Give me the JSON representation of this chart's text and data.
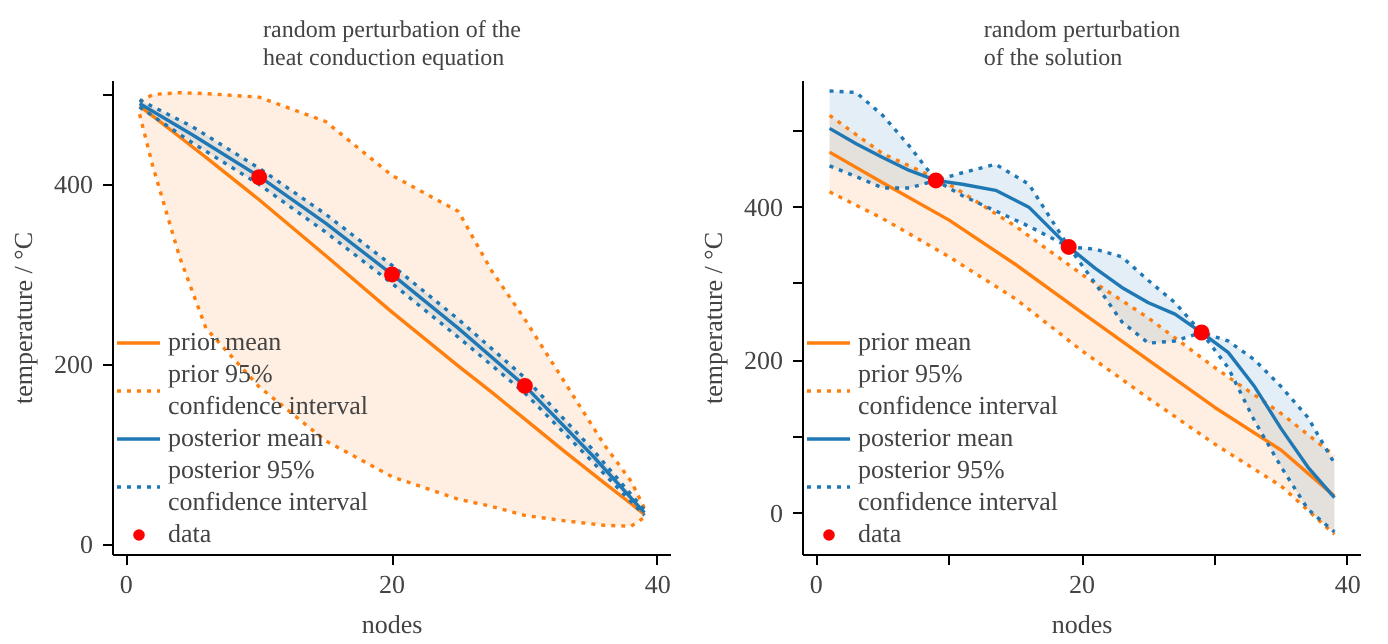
{
  "chart_data": [
    {
      "type": "line",
      "title": "random perturbation of the\nheat conduction equation",
      "xlabel": "nodes",
      "ylabel": "temperature / °C",
      "xlim": [
        -1,
        41
      ],
      "ylim": [
        -12,
        515
      ],
      "xticks": [
        0,
        20,
        40
      ],
      "yticks": [
        0,
        200,
        400,
        {
          "value": 500,
          "label": null
        }
      ],
      "grid": false,
      "legend": "bottom left",
      "series": [
        {
          "name": "prior mean",
          "type": "line",
          "color": "#ff7f0e",
          "line_style": "solid",
          "x": [
            1,
            2,
            4,
            6,
            10,
            15,
            20,
            25,
            27.5,
            30,
            33,
            36,
            38,
            39
          ],
          "values": [
            487,
            476,
            453,
            430,
            383,
            321,
            258,
            198,
            169,
            139,
            103,
            68,
            45,
            33
          ],
          "lower": [
            478,
            420,
            320,
            240,
            175,
            115,
            75,
            50,
            42,
            32,
            26,
            21,
            20,
            30
          ],
          "upper": [
            492,
            500,
            502,
            501,
            497,
            470,
            410,
            370,
            304,
            250,
            180,
            110,
            70,
            40
          ]
        },
        {
          "name": "prior 95% confidence interval",
          "type": "line",
          "color": "#ff7f0e",
          "line_style": "dotted",
          "x": [
            1,
            2,
            4,
            6,
            10,
            15,
            20,
            25,
            27.5,
            30,
            33,
            36,
            38,
            39
          ],
          "values": [
            492,
            500,
            502,
            501,
            497,
            470,
            410,
            370,
            304,
            250,
            180,
            110,
            70,
            40
          ]
        },
        {
          "type": "line",
          "color": "#ff7f0e",
          "line_style": "dotted",
          "x": [
            1,
            2,
            4,
            6,
            10,
            15,
            20,
            25,
            27.5,
            30,
            33,
            36,
            38,
            39
          ],
          "values": [
            478,
            420,
            320,
            240,
            175,
            115,
            75,
            50,
            42,
            32,
            26,
            21,
            20,
            30
          ]
        },
        {
          "name": "posterior mean",
          "type": "line",
          "color": "#1f77b4",
          "line_style": "solid",
          "x": [
            1,
            5,
            10,
            15,
            20,
            25,
            30,
            35,
            39
          ],
          "values": [
            490,
            455,
            409,
            357,
            300,
            240,
            176,
            100,
            35
          ],
          "lower": [
            486,
            446,
            400,
            347,
            290,
            230,
            168,
            93,
            32
          ],
          "upper": [
            494,
            464,
            418,
            367,
            310,
            250,
            185,
            107,
            38
          ]
        },
        {
          "name": "posterior 95% confidence interval",
          "type": "line",
          "color": "#1f77b4",
          "line_style": "dotted",
          "x": [
            1,
            5,
            10,
            15,
            20,
            25,
            30,
            35,
            39
          ],
          "values": [
            494,
            464,
            418,
            367,
            310,
            250,
            185,
            107,
            38
          ]
        },
        {
          "type": "line",
          "color": "#1f77b4",
          "line_style": "dotted",
          "x": [
            1,
            5,
            10,
            15,
            20,
            25,
            30,
            35,
            39
          ],
          "values": [
            486,
            446,
            400,
            347,
            290,
            230,
            168,
            93,
            32
          ]
        },
        {
          "name": "data",
          "type": "scatter",
          "marker": "circle",
          "color": "#ff0000",
          "x": [
            10,
            20,
            30
          ],
          "values": [
            408,
            300,
            176
          ]
        }
      ]
    },
    {
      "type": "line",
      "title": "random perturbation\nof the solution",
      "xlabel": "nodes",
      "ylabel": "temperature / °C",
      "xlim": [
        -1,
        41
      ],
      "ylim": [
        -55,
        565
      ],
      "xticks": [
        0,
        {
          "value": 10,
          "label": null
        },
        20,
        {
          "value": 30,
          "label": null
        },
        40
      ],
      "yticks": [
        0,
        {
          "value": 100,
          "label": null
        },
        200,
        {
          "value": 300,
          "label": null
        },
        400,
        {
          "value": 500,
          "label": null
        }
      ],
      "grid": false,
      "legend": "bottom left",
      "series": [
        {
          "name": "prior mean",
          "type": "line",
          "color": "#ff7f0e",
          "line_style": "solid",
          "x": [
            1,
            5,
            10,
            15,
            20,
            25,
            30,
            35,
            39
          ],
          "values": [
            472,
            432,
            383,
            325,
            262,
            200,
            138,
            82,
            22
          ],
          "lower": [
            420,
            385,
            335,
            280,
            212,
            150,
            90,
            35,
            -28
          ],
          "upper": [
            520,
            470,
            430,
            375,
            312,
            255,
            190,
            130,
            75
          ]
        },
        {
          "name": "prior 95% confidence interval",
          "type": "line",
          "color": "#ff7f0e",
          "line_style": "dotted",
          "x": [
            1,
            5,
            10,
            15,
            20,
            25,
            30,
            35,
            39
          ],
          "values": [
            520,
            470,
            430,
            375,
            312,
            255,
            190,
            130,
            75
          ]
        },
        {
          "type": "line",
          "color": "#ff7f0e",
          "line_style": "dotted",
          "x": [
            1,
            5,
            10,
            15,
            20,
            25,
            30,
            35,
            39
          ],
          "values": [
            420,
            385,
            335,
            280,
            212,
            150,
            90,
            35,
            -28
          ]
        },
        {
          "name": "posterior mean",
          "type": "line",
          "color": "#1f77b4",
          "line_style": "solid",
          "x": [
            1,
            3,
            5,
            7,
            9,
            11,
            13.5,
            16,
            19,
            21,
            23,
            25,
            27,
            29,
            31,
            33,
            35,
            37,
            39
          ],
          "values": [
            503,
            483,
            465,
            448,
            435,
            430,
            422,
            400,
            348,
            320,
            295,
            275,
            260,
            236,
            210,
            165,
            110,
            60,
            20
          ],
          "lower": [
            454,
            440,
            425,
            425,
            435,
            415,
            395,
            375,
            348,
            300,
            250,
            222,
            225,
            236,
            190,
            120,
            60,
            5,
            -25
          ],
          "upper": [
            552,
            550,
            520,
            480,
            435,
            445,
            456,
            430,
            348,
            345,
            335,
            304,
            275,
            236,
            225,
            200,
            165,
            125,
            65
          ]
        },
        {
          "name": "posterior 95% confidence interval",
          "type": "line",
          "color": "#1f77b4",
          "line_style": "dotted",
          "x": [
            1,
            3,
            5,
            7,
            9,
            11,
            13.5,
            16,
            19,
            21,
            23,
            25,
            27,
            29,
            31,
            33,
            35,
            37,
            39
          ],
          "values": [
            552,
            550,
            520,
            480,
            435,
            445,
            456,
            430,
            348,
            345,
            335,
            304,
            275,
            236,
            225,
            200,
            165,
            125,
            65
          ]
        },
        {
          "type": "line",
          "color": "#1f77b4",
          "line_style": "dotted",
          "x": [
            1,
            3,
            5,
            7,
            9,
            11,
            13.5,
            16,
            19,
            21,
            23,
            25,
            27,
            29,
            31,
            33,
            35,
            37,
            39
          ],
          "values": [
            454,
            440,
            425,
            425,
            435,
            415,
            395,
            375,
            348,
            300,
            250,
            222,
            225,
            236,
            190,
            120,
            60,
            5,
            -25
          ]
        },
        {
          "name": "data",
          "type": "scatter",
          "marker": "circle",
          "color": "#ff0000",
          "x": [
            9,
            19,
            29
          ],
          "values": [
            435,
            348,
            236
          ]
        }
      ]
    }
  ]
}
